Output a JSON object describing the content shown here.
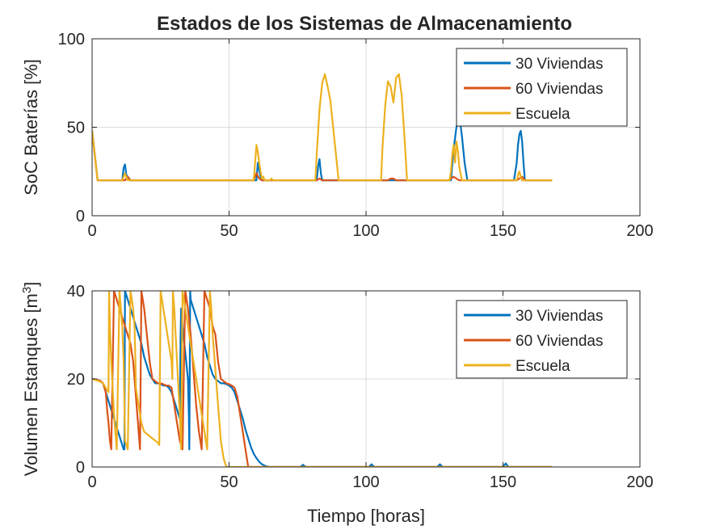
{
  "figure_title": "Estados de los Sistemas de Almacenamiento",
  "colors": {
    "s1": "#0072BD",
    "s2": "#D95319",
    "s3": "#EDB120",
    "grid": "#dcdcdc",
    "axis": "#262626"
  },
  "chart_data": [
    {
      "type": "line",
      "title": "Estados de los Sistemas de Almacenamiento",
      "xlabel": "",
      "ylabel": "SoC Baterías [%]",
      "xlim": [
        0,
        200
      ],
      "ylim": [
        0,
        100
      ],
      "xticks": [
        0,
        50,
        100,
        150,
        200
      ],
      "yticks": [
        0,
        50,
        100
      ],
      "grid": true,
      "legend_position": "top-right",
      "series": [
        {
          "name": "30 Viviendas",
          "color": "#0072BD",
          "x": [
            0,
            2,
            11,
            11.5,
            12,
            12.5,
            13,
            13.5,
            14,
            60,
            60.5,
            61,
            61.5,
            62,
            82,
            82.5,
            83,
            83.5,
            84,
            131,
            132,
            133,
            134,
            135,
            136,
            137,
            154,
            155,
            155.5,
            156,
            156.5,
            157,
            157.5,
            158,
            168
          ],
          "y": [
            48,
            20,
            20,
            27,
            29,
            23,
            22,
            21,
            20,
            20,
            30,
            26,
            22,
            20,
            20,
            28,
            32,
            24,
            20,
            20,
            38,
            50,
            57,
            45,
            30,
            20,
            20,
            30,
            40,
            46,
            48,
            42,
            30,
            20,
            20
          ]
        },
        {
          "name": "60 Viviendas",
          "color": "#D95319",
          "x": [
            0,
            2,
            12,
            13,
            14,
            59,
            60,
            61,
            62,
            63,
            82,
            83,
            84,
            85,
            90,
            105,
            108,
            109,
            110,
            111,
            115,
            130,
            131,
            132,
            133,
            134,
            136,
            155,
            156,
            157,
            158,
            168
          ],
          "y": [
            48,
            20,
            20,
            22,
            20,
            20,
            24,
            21,
            20,
            20,
            20,
            21,
            20,
            20,
            20,
            20,
            20,
            21,
            21,
            20,
            20,
            20,
            21,
            22,
            21,
            20,
            20,
            20,
            21,
            22,
            20,
            20
          ]
        },
        {
          "name": "Escuela",
          "color": "#EDB120",
          "x": [
            0,
            2,
            11,
            11.5,
            12,
            12.5,
            13,
            59,
            59.5,
            60,
            60.5,
            61,
            61.5,
            62,
            62.5,
            63,
            65,
            65.5,
            66,
            81.5,
            82,
            83,
            84,
            85,
            86,
            87,
            88,
            89,
            90,
            105.5,
            106,
            107,
            108,
            109,
            110,
            111,
            112,
            113,
            114,
            115,
            130.5,
            131,
            131.5,
            132,
            132.5,
            133,
            133.5,
            134,
            134.5,
            135,
            155,
            155.5,
            156,
            156.5,
            157,
            168
          ],
          "y": [
            48,
            20,
            20,
            22,
            24,
            22,
            20,
            20,
            30,
            40,
            36,
            30,
            25,
            21,
            22,
            20,
            20,
            21,
            20,
            20,
            35,
            60,
            75,
            80,
            73,
            65,
            50,
            35,
            20,
            20,
            38,
            62,
            76,
            73,
            64,
            78,
            80,
            68,
            45,
            20,
            20,
            25,
            35,
            40,
            30,
            42,
            37,
            28,
            24,
            20,
            20,
            23,
            25,
            22,
            20,
            20
          ]
        }
      ]
    },
    {
      "type": "line",
      "title": "",
      "xlabel": "Tiempo [horas]",
      "ylabel": "Volumen Estanques [m³]",
      "ylabel_main": "Volumen Estanques [m",
      "ylabel_sup": "3",
      "ylabel_end": "]",
      "xlim": [
        0,
        200
      ],
      "ylim": [
        0,
        40
      ],
      "xticks": [
        0,
        50,
        100,
        150,
        200
      ],
      "yticks": [
        0,
        20,
        40
      ],
      "grid": true,
      "legend_position": "top-right",
      "series": [
        {
          "name": "30 Viviendas",
          "color": "#0072BD",
          "x": [
            0,
            2,
            4,
            5,
            6,
            7,
            8,
            9,
            10,
            11,
            11.5,
            11.8,
            12,
            13,
            14,
            15,
            16,
            17,
            18,
            19,
            20,
            21,
            22,
            23,
            24,
            25,
            26,
            27,
            28,
            29,
            30,
            31,
            32,
            32.3,
            32.5,
            33,
            34,
            35,
            35.3,
            35.5,
            35.8,
            36,
            37,
            38,
            39,
            40,
            41,
            42,
            43,
            44,
            45,
            46,
            47,
            48,
            49,
            50,
            51,
            52,
            53,
            54,
            55,
            56,
            57,
            58,
            59,
            60,
            61,
            62,
            63,
            64,
            65,
            66,
            67,
            75,
            76,
            77,
            78,
            79,
            100,
            101,
            102,
            103,
            104,
            125,
            126,
            127,
            128,
            129,
            149,
            150,
            151,
            152,
            153,
            168
          ],
          "y": [
            20,
            19.8,
            19,
            17,
            15,
            13,
            11,
            9,
            7,
            5,
            4,
            4,
            40,
            38,
            36,
            34,
            32,
            30,
            28,
            25,
            23,
            21,
            20,
            19,
            19,
            18.8,
            18.5,
            18.5,
            18,
            17,
            15,
            13,
            11,
            30,
            36,
            32,
            26,
            20,
            12,
            4,
            40,
            38,
            36,
            34,
            32,
            30,
            28,
            25,
            23,
            21,
            20,
            19.5,
            19,
            19,
            18.8,
            18.5,
            18,
            17,
            15,
            13,
            11,
            8.5,
            6.5,
            4.5,
            3,
            2,
            1.2,
            0.6,
            0.3,
            0.1,
            0,
            0,
            0,
            0,
            0,
            0.5,
            0,
            0,
            0,
            0,
            0.6,
            0,
            0,
            0,
            0,
            0.6,
            0,
            0,
            0,
            0,
            0.8,
            0,
            0,
            0
          ]
        },
        {
          "name": "60 Viviendas",
          "color": "#D95319",
          "x": [
            0,
            3,
            4,
            5,
            5.5,
            6,
            6.5,
            7,
            8,
            9,
            10,
            11,
            12,
            13,
            14,
            15,
            16,
            17,
            17.5,
            18,
            19,
            20,
            21,
            22,
            23,
            24,
            25,
            26,
            27,
            28,
            29,
            30,
            31,
            32,
            33,
            34,
            35,
            36,
            37,
            38,
            39,
            40,
            41,
            42,
            43,
            43.5,
            44,
            45,
            46,
            47,
            48,
            49,
            50,
            51,
            52,
            53,
            54,
            55,
            56,
            57,
            58,
            168
          ],
          "y": [
            20,
            19.6,
            19,
            17,
            13,
            10,
            6,
            4,
            40,
            38,
            36,
            34,
            32,
            30,
            28,
            24,
            16,
            8,
            4,
            40,
            36,
            30,
            24,
            20,
            19.5,
            19,
            19,
            18.8,
            18.5,
            18.5,
            18,
            14,
            10,
            6,
            4,
            40,
            36,
            30,
            22,
            14,
            8,
            4,
            40,
            38,
            36,
            34,
            32,
            30,
            24,
            20,
            19.5,
            19,
            18.8,
            18.5,
            18,
            16,
            12,
            8,
            4,
            0,
            0,
            0
          ]
        },
        {
          "name": "Escuela",
          "color": "#EDB120",
          "x": [
            0,
            3,
            4,
            5,
            6,
            6.2,
            6.5,
            7,
            8,
            9,
            10,
            11,
            11.5,
            11.8,
            12,
            13,
            14,
            15,
            15.5,
            15.8,
            16,
            17,
            18,
            19,
            20,
            21,
            22,
            23,
            24,
            24.5,
            25,
            26,
            27,
            28,
            29,
            29.3,
            29.5,
            30,
            31,
            32,
            32.5,
            33,
            34,
            35,
            36,
            37,
            38,
            39,
            40,
            41,
            42,
            43,
            43.5,
            44,
            45,
            46,
            47,
            48,
            49,
            55,
            60,
            70,
            80,
            90,
            100,
            110,
            120,
            130,
            140,
            150,
            160,
            168
          ],
          "y": [
            20,
            19.4,
            19,
            18,
            17,
            40,
            32,
            24,
            12,
            4,
            40,
            32,
            24,
            14,
            6,
            4,
            40,
            36,
            32,
            24,
            18,
            14,
            10,
            8,
            7.5,
            7,
            6.5,
            6,
            5.5,
            5,
            40,
            36,
            32,
            28,
            24,
            20,
            40,
            36,
            24,
            12,
            4,
            40,
            36,
            32,
            28,
            24,
            20,
            16,
            12,
            8,
            4,
            40,
            36,
            30,
            22,
            14,
            6,
            2,
            0,
            0,
            0,
            0,
            0,
            0,
            0,
            0,
            0,
            0,
            0,
            0,
            0,
            0
          ]
        }
      ]
    }
  ]
}
